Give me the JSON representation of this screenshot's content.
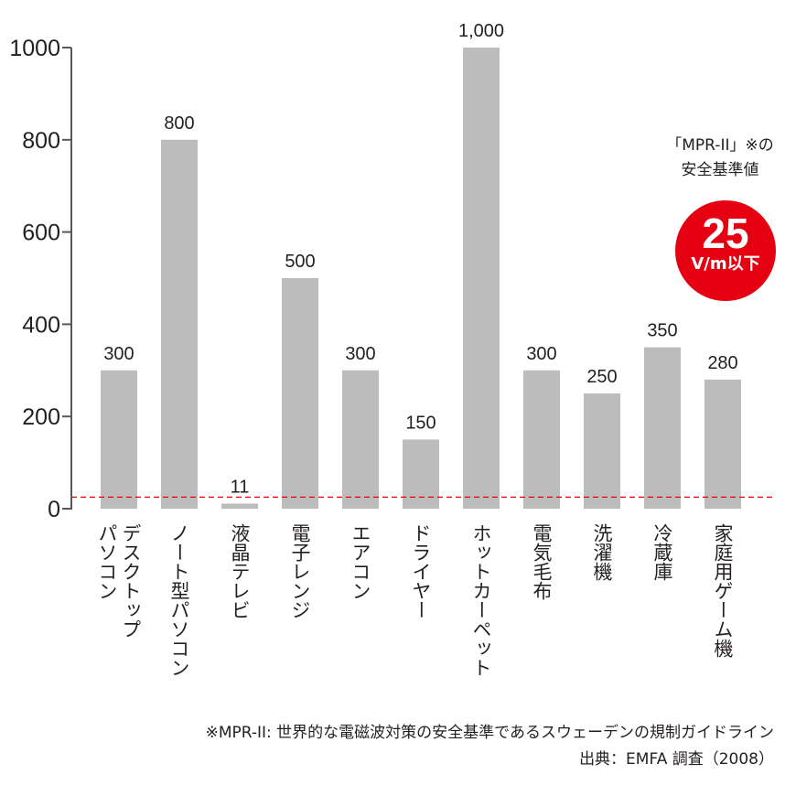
{
  "chart_data": {
    "type": "bar",
    "categories": [
      "デスクトップパソコン",
      "ノート型パソコン",
      "液晶テレビ",
      "電子レンジ",
      "エアコン",
      "ドライヤー",
      "ホットカーペット",
      "電気毛布",
      "洗濯機",
      "冷蔵庫",
      "家庭用ゲーム機"
    ],
    "category_lines": [
      [
        "デスクトップ",
        "パソコン"
      ],
      [
        "ノート型パソコン"
      ],
      [
        "液晶テレビ"
      ],
      [
        "電子レンジ"
      ],
      [
        "エアコン"
      ],
      [
        "ドライヤー"
      ],
      [
        "ホットカーペット"
      ],
      [
        "電気毛布"
      ],
      [
        "洗濯機"
      ],
      [
        "冷蔵庫"
      ],
      [
        "家庭用ゲーム機"
      ]
    ],
    "values": [
      300,
      800,
      11,
      500,
      300,
      150,
      1000,
      300,
      250,
      350,
      280
    ],
    "value_labels": [
      "300",
      "800",
      "11",
      "500",
      "300",
      "150",
      "1,000",
      "300",
      "250",
      "350",
      "280"
    ],
    "yticks": [
      "0",
      "200",
      "400",
      "600",
      "800",
      "1000"
    ],
    "ylim": [
      0,
      1000
    ],
    "reference_line": {
      "value": 25,
      "style": "dashed",
      "color": "#e50012"
    },
    "bar_color": "#bcbcbc",
    "axis_color": "#595757",
    "grid": false
  },
  "annotation": {
    "line1": "「MPR-II」※の",
    "line2": "安全基準値",
    "value": "25",
    "unit": "V/m以下",
    "badge_color": "#e50012"
  },
  "footnote": "※MPR-II: 世界的な電磁波対策の安全基準であるスウェーデンの規制ガイドライン",
  "source": "出典：EMFA 調査（2008）"
}
